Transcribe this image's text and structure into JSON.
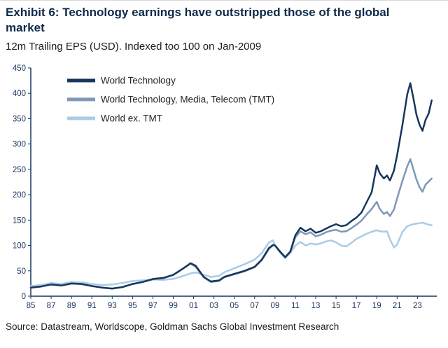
{
  "header": {
    "title": "Exhibit 6: Technology earnings have outstripped those of the global market",
    "subtitle": "12m Trailing EPS (USD). Indexed too 100 on Jan-2009"
  },
  "footer": {
    "source": "Source: Datastream, Worldscope, Goldman Sachs Global Investment Research"
  },
  "colors": {
    "navy": "#17365d",
    "tmt_blue": "#7d98b8",
    "light_blue": "#abcbe4",
    "axis": "#17365d",
    "tick_text": "#17365d",
    "legend_text": "#262626"
  },
  "chart_data": {
    "type": "line",
    "title": "Exhibit 6: Technology earnings have outstripped those of the global market",
    "subtitle": "12m Trailing EPS (USD). Indexed too 100 on Jan-2009",
    "xlabel": "",
    "ylabel": "",
    "grid": false,
    "legend_position": "top-left",
    "ylim": [
      0,
      450
    ],
    "yticks": [
      0,
      50,
      100,
      150,
      200,
      250,
      300,
      350,
      400,
      450
    ],
    "xlim": [
      1985,
      2024.9
    ],
    "xticks": [
      1985,
      1987,
      1989,
      1991,
      1993,
      1995,
      1997,
      1999,
      2001,
      2003,
      2005,
      2007,
      2009,
      2011,
      2013,
      2015,
      2017,
      2019,
      2021,
      2023
    ],
    "xtick_labels": [
      "85",
      "87",
      "89",
      "91",
      "93",
      "95",
      "97",
      "99",
      "01",
      "03",
      "05",
      "07",
      "09",
      "11",
      "13",
      "15",
      "17",
      "19",
      "21",
      "23"
    ],
    "x": [
      1985,
      1986,
      1987,
      1988,
      1989,
      1990,
      1991,
      1992,
      1993,
      1994,
      1995,
      1996,
      1997,
      1998,
      1999,
      2000,
      2000.7,
      2001.2,
      2002,
      2002.7,
      2003.5,
      2004,
      2005,
      2006,
      2007,
      2007.7,
      2008.4,
      2008.8,
      2009,
      2009.5,
      2010,
      2010.5,
      2011,
      2011.5,
      2012,
      2012.5,
      2013,
      2013.5,
      2014,
      2014.5,
      2015,
      2015.5,
      2016,
      2016.5,
      2017,
      2017.5,
      2018,
      2018.5,
      2019,
      2019.3,
      2019.7,
      2020,
      2020.3,
      2020.7,
      2021,
      2021.5,
      2022,
      2022.3,
      2022.6,
      2022.9,
      2023.2,
      2023.5,
      2023.8,
      2024.1,
      2024.4
    ],
    "series": [
      {
        "name": "World Technology",
        "color": "#17365d",
        "values": [
          17,
          19,
          23,
          21,
          25,
          24,
          20,
          17,
          15,
          18,
          24,
          28,
          34,
          36,
          42,
          55,
          65,
          60,
          38,
          29,
          31,
          38,
          44,
          50,
          58,
          72,
          95,
          101,
          100,
          88,
          77,
          88,
          120,
          135,
          128,
          133,
          125,
          128,
          133,
          138,
          142,
          138,
          140,
          148,
          155,
          165,
          185,
          205,
          258,
          242,
          232,
          238,
          228,
          248,
          278,
          335,
          398,
          420,
          390,
          358,
          338,
          326,
          348,
          360,
          386
        ]
      },
      {
        "name": "World Technology, Media, Telecom (TMT)",
        "color": "#7d98b8",
        "values": [
          17,
          19,
          23,
          21,
          25,
          24,
          20,
          17,
          15,
          18,
          24,
          28,
          33,
          35,
          42,
          55,
          64,
          58,
          37,
          28,
          30,
          37,
          43,
          49,
          57,
          71,
          93,
          100,
          100,
          87,
          76,
          87,
          116,
          128,
          122,
          126,
          118,
          121,
          126,
          129,
          131,
          127,
          128,
          134,
          141,
          149,
          161,
          172,
          186,
          172,
          162,
          166,
          158,
          171,
          193,
          226,
          256,
          270,
          250,
          230,
          215,
          206,
          220,
          226,
          232
        ]
      },
      {
        "name": "World ex. TMT",
        "color": "#abcbe4",
        "values": [
          20,
          22,
          26,
          24,
          28,
          27,
          24,
          22,
          23,
          26,
          30,
          31,
          33,
          32,
          34,
          40,
          45,
          47,
          42,
          38,
          40,
          47,
          55,
          63,
          72,
          85,
          106,
          110,
          100,
          86,
          75,
          85,
          100,
          107,
          100,
          104,
          102,
          104,
          108,
          110,
          106,
          100,
          98,
          105,
          113,
          118,
          123,
          127,
          130,
          128,
          127,
          128,
          112,
          96,
          102,
          126,
          138,
          140,
          142,
          143,
          144,
          145,
          143,
          141,
          140
        ]
      }
    ]
  }
}
